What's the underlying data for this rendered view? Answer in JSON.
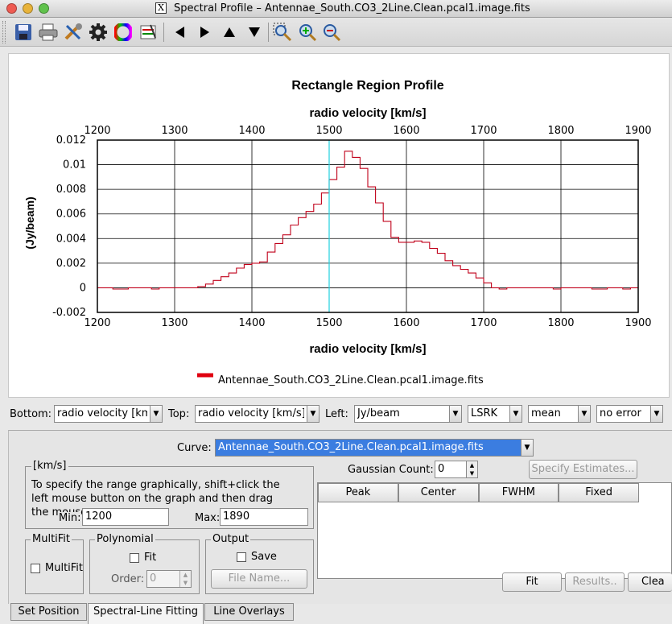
{
  "window": {
    "title": "Spectral Profile – Antennae_South.CO3_2Line.Clean.pcal1.image.fits",
    "x11_glyph": "X"
  },
  "toolbar": {
    "icons": [
      "save-icon",
      "print-icon",
      "tools-icon",
      "gear-icon",
      "color-wheel-icon",
      "legend-icon",
      "arrow-left-icon",
      "arrow-right-icon",
      "arrow-up-icon",
      "arrow-down-icon",
      "zoom-box-icon",
      "zoom-in-icon",
      "zoom-out-icon"
    ]
  },
  "chart_data": {
    "type": "line",
    "title": "Rectangle Region Profile",
    "xlabel_top": "radio velocity [km/s]",
    "xlabel": "radio velocity [km/s]",
    "ylabel": "(Jy/beam)",
    "xlim": [
      1200,
      1900
    ],
    "ylim": [
      -0.002,
      0.012
    ],
    "x_ticks": [
      "1200",
      "1300",
      "1400",
      "1500",
      "1600",
      "1700",
      "1800",
      "1900"
    ],
    "y_ticks": [
      "0.012",
      "0.01",
      "0.008",
      "0.006",
      "0.004",
      "0.002",
      "0",
      "-0.002"
    ],
    "marker_x": 1500,
    "series": [
      {
        "name": "Antennae_South.CO3_2Line.Clean.pcal1.image.fits",
        "color": "#c0001a",
        "x": [
          1200,
          1210,
          1220,
          1230,
          1240,
          1250,
          1260,
          1270,
          1280,
          1290,
          1300,
          1310,
          1320,
          1330,
          1340,
          1350,
          1360,
          1370,
          1380,
          1390,
          1400,
          1410,
          1420,
          1430,
          1440,
          1450,
          1460,
          1470,
          1480,
          1490,
          1500,
          1510,
          1520,
          1530,
          1540,
          1550,
          1560,
          1570,
          1580,
          1590,
          1600,
          1610,
          1620,
          1630,
          1640,
          1650,
          1660,
          1670,
          1680,
          1690,
          1700,
          1710,
          1720,
          1730,
          1740,
          1750,
          1760,
          1770,
          1780,
          1790,
          1800,
          1810,
          1820,
          1830,
          1840,
          1850,
          1860,
          1870,
          1880,
          1890
        ],
        "y": [
          0.0,
          0.0,
          -0.0001,
          -0.0001,
          0.0,
          0.0,
          0.0,
          -0.0001,
          0.0,
          0.0,
          0.0,
          0.0,
          0.0,
          0.0001,
          0.0003,
          0.0006,
          0.0009,
          0.0012,
          0.0016,
          0.0019,
          0.002,
          0.0021,
          0.0029,
          0.0036,
          0.0043,
          0.0051,
          0.0057,
          0.0062,
          0.0068,
          0.0077,
          0.0088,
          0.0098,
          0.0111,
          0.0106,
          0.0097,
          0.0082,
          0.0069,
          0.0054,
          0.0041,
          0.0037,
          0.0037,
          0.0038,
          0.0037,
          0.0032,
          0.0028,
          0.0022,
          0.0018,
          0.0015,
          0.0012,
          0.0008,
          0.0004,
          0.0,
          -0.0001,
          0.0,
          0.0,
          0.0,
          0.0,
          0.0,
          0.0,
          -0.0001,
          0.0,
          0.0,
          0.0,
          0.0,
          -0.0001,
          -0.0001,
          0.0,
          0.0,
          -0.0001,
          0.0
        ]
      }
    ],
    "legend_position": "bottom",
    "grid": true
  },
  "axis_controls": {
    "bottom_label": "Bottom:",
    "bottom_value": "radio velocity [km/",
    "top_label": "Top:",
    "top_value": "radio velocity [km/s]",
    "left_label": "Left:",
    "left_value": "Jy/beam",
    "frame_value": "LSRK",
    "stat_value": "mean",
    "error_value": "no error"
  },
  "fitting": {
    "curve_label": "Curve:",
    "curve_value": "Antennae_South.CO3_2Line.Clean.pcal1.image.fits",
    "gaussian_count_label": "Gaussian Count:",
    "gaussian_count": "0",
    "specify_estimates": "Specify Estimates...",
    "table_headers": [
      "Peak",
      "Center",
      "FWHM",
      "Fixed"
    ],
    "range_title": "[km/s]",
    "range_help": "To specify the range graphically, shift+click the left mouse button on the graph and then drag the mouse",
    "min_label": "Min:",
    "min_value": "1200",
    "max_label": "Max:",
    "max_value": "1890",
    "multifit_title": "MultiFit",
    "multifit_label": "MultiFit",
    "polynomial_title": "Polynomial",
    "poly_fit_label": "Fit",
    "order_label": "Order:",
    "order_value": "0",
    "output_title": "Output",
    "save_label": "Save",
    "file_name_button": "File Name...",
    "fit_button": "Fit",
    "results_button": "Results..",
    "clear_button": "Clea"
  },
  "tabs": [
    "Set Position",
    "Spectral-Line Fitting",
    "Line Overlays"
  ]
}
